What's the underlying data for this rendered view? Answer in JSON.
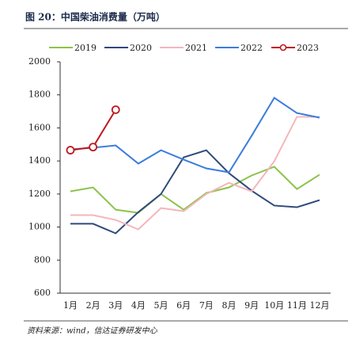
{
  "chart_data": {
    "type": "line",
    "title": "图 20：中国柴油消费量（万吨）",
    "source": "资料来源：wind，信达证券研发中心",
    "categories": [
      "1月",
      "2月",
      "3月",
      "4月",
      "5月",
      "6月",
      "7月",
      "8月",
      "9月",
      "10月",
      "11月",
      "12月"
    ],
    "series": [
      {
        "name": "2019",
        "color": "#8bc34a",
        "values": [
          1216,
          1240,
          1105,
          1086,
          1200,
          1105,
          1206,
          1240,
          1312,
          1365,
          1230,
          1317
        ]
      },
      {
        "name": "2020",
        "color": "#2f4a7c",
        "values": [
          1020,
          1020,
          962,
          1091,
          1200,
          1422,
          1465,
          1326,
          1220,
          1130,
          1120,
          1163
        ]
      },
      {
        "name": "2021",
        "color": "#f4b6bc",
        "values": [
          1072,
          1072,
          1043,
          986,
          1115,
          1096,
          1200,
          1268,
          1216,
          1398,
          1667,
          1667
        ]
      },
      {
        "name": "2022",
        "color": "#3b7ddd",
        "values": [
          1470,
          1480,
          1494,
          1384,
          1465,
          1408,
          1355,
          1331,
          1552,
          1782,
          1690,
          1662
        ]
      },
      {
        "name": "2023",
        "color": "#c0181f",
        "marker": true,
        "values": [
          1465,
          1484,
          1710,
          null,
          null,
          null,
          null,
          null,
          null,
          null,
          null,
          null
        ]
      }
    ],
    "ylim": [
      600,
      2000
    ],
    "yticks": [
      600,
      800,
      1000,
      1200,
      1400,
      1600,
      1800,
      2000
    ]
  }
}
